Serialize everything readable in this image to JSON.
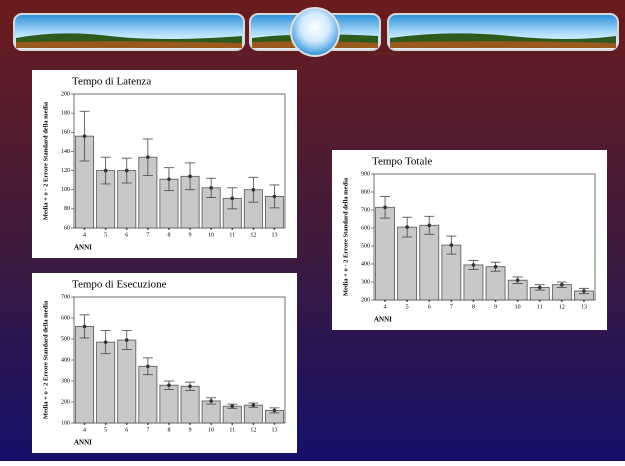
{
  "chart_data": [
    {
      "type": "bar",
      "title": "Tempo di Latenza",
      "y_label": "Media + o - 2 Errore Standard della media",
      "x_label": "ANNI",
      "categories": [
        "4",
        "5",
        "6",
        "7",
        "8",
        "9",
        "10",
        "11",
        "12",
        "13"
      ],
      "values": [
        156,
        120,
        120,
        134,
        111,
        114,
        102,
        91,
        100,
        93
      ],
      "errors": [
        26,
        14,
        13,
        19,
        12,
        14,
        10,
        11,
        13,
        12
      ],
      "color": "#c8c8c8",
      "ylim": [
        60,
        200
      ],
      "yticks": [
        60,
        80,
        100,
        120,
        140,
        160,
        180,
        200
      ]
    },
    {
      "type": "bar",
      "title": "Tempo Totale",
      "y_label": "Media + o - 2 Errore Standard della media",
      "x_label": "ANNI",
      "categories": [
        "4",
        "5",
        "6",
        "7",
        "8",
        "9",
        "10",
        "11",
        "12",
        "13"
      ],
      "values": [
        715,
        605,
        615,
        505,
        395,
        385,
        310,
        270,
        285,
        250
      ],
      "errors": [
        60,
        55,
        50,
        50,
        25,
        25,
        18,
        15,
        15,
        15
      ],
      "color": "#c8c8c8",
      "ylim": [
        200,
        900
      ],
      "yticks": [
        200,
        300,
        400,
        500,
        600,
        700,
        800,
        900
      ]
    },
    {
      "type": "bar",
      "title": "Tempo di Esecuzione",
      "y_label": "Media + o - 2 Errore Standard della media",
      "x_label": "ANNI",
      "categories": [
        "4",
        "5",
        "6",
        "7",
        "8",
        "9",
        "10",
        "11",
        "12",
        "13"
      ],
      "values": [
        560,
        485,
        495,
        370,
        280,
        275,
        205,
        180,
        185,
        160
      ],
      "errors": [
        55,
        55,
        45,
        40,
        20,
        20,
        15,
        10,
        10,
        12
      ],
      "color": "#c8c8c8",
      "ylim": [
        100,
        700
      ],
      "yticks": [
        100,
        200,
        300,
        400,
        500,
        600,
        700
      ]
    }
  ]
}
